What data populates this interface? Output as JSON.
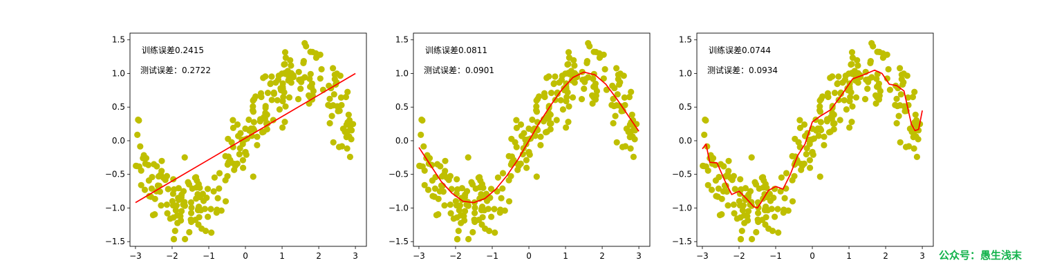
{
  "chart_data": [
    {
      "type": "scatter",
      "xlim": [
        -3.15,
        3.3
      ],
      "ylim": [
        -1.57,
        1.6
      ],
      "xticks": [
        "−3",
        "−2",
        "−1",
        "0",
        "1",
        "2",
        "3"
      ],
      "yticks": [
        "1.5",
        "1.0",
        "0.5",
        "0.0",
        "−0.5",
        "−1.0",
        "−1.5"
      ],
      "annotations": [
        "训练误差0.2415",
        "测试误差：0.2722"
      ],
      "scatter_color": "#bfbf00",
      "fit_color": "#ff0000",
      "fit_curve": {
        "x": [
          -3.0,
          -2.0,
          -1.0,
          0.0,
          1.0,
          2.0,
          3.0
        ],
        "y": [
          -0.92,
          -0.6,
          -0.28,
          0.04,
          0.36,
          0.68,
          1.0
        ]
      }
    },
    {
      "type": "scatter",
      "xlim": [
        -3.15,
        3.3
      ],
      "ylim": [
        -1.57,
        1.6
      ],
      "xticks": [
        "−3",
        "−2",
        "−1",
        "0",
        "1",
        "2",
        "3"
      ],
      "yticks": [
        "1.5",
        "1.0",
        "0.5",
        "0.0",
        "−0.5",
        "−1.0",
        "−1.5"
      ],
      "annotations": [
        "训练误差0.0811",
        "测试误差：0.0901"
      ],
      "scatter_color": "#bfbf00",
      "fit_color": "#ff0000",
      "fit_curve": {
        "x": [
          -3.0,
          -2.7,
          -2.4,
          -2.1,
          -1.8,
          -1.5,
          -1.2,
          -0.9,
          -0.6,
          -0.3,
          0.0,
          0.3,
          0.6,
          0.9,
          1.2,
          1.5,
          1.8,
          2.1,
          2.4,
          2.7,
          3.0
        ],
        "y": [
          -0.1,
          -0.35,
          -0.6,
          -0.78,
          -0.9,
          -0.92,
          -0.86,
          -0.72,
          -0.52,
          -0.28,
          0.0,
          0.28,
          0.53,
          0.76,
          0.94,
          1.02,
          0.98,
          0.84,
          0.62,
          0.38,
          0.14
        ]
      }
    },
    {
      "type": "scatter",
      "xlim": [
        -3.15,
        3.3
      ],
      "ylim": [
        -1.57,
        1.6
      ],
      "xticks": [
        "−3",
        "−2",
        "−1",
        "0",
        "1",
        "2",
        "3"
      ],
      "yticks": [
        "1.5",
        "1.0",
        "0.5",
        "0.0",
        "−0.5",
        "−1.0",
        "−1.5"
      ],
      "annotations": [
        "训练误差0.0744",
        "测试误差：0.0934"
      ],
      "scatter_color": "#bfbf00",
      "fit_color": "#ff0000",
      "fit_curve": {
        "x": [
          -3.0,
          -2.9,
          -2.8,
          -2.6,
          -2.4,
          -2.2,
          -2.0,
          -1.8,
          -1.6,
          -1.5,
          -1.4,
          -1.2,
          -1.0,
          -0.8,
          -0.6,
          -0.4,
          -0.2,
          0.0,
          0.2,
          0.5,
          0.8,
          1.1,
          1.4,
          1.7,
          1.9,
          2.1,
          2.3,
          2.5,
          2.7,
          2.8,
          2.9,
          3.0
        ],
        "y": [
          -0.12,
          -0.05,
          -0.32,
          -0.33,
          -0.58,
          -0.8,
          -0.75,
          -0.86,
          -0.98,
          -1.0,
          -0.92,
          -0.74,
          -0.68,
          -0.72,
          -0.5,
          -0.22,
          -0.05,
          0.28,
          0.36,
          0.46,
          0.68,
          0.92,
          0.98,
          1.05,
          1.0,
          0.84,
          0.82,
          0.74,
          0.25,
          0.15,
          0.17,
          0.45
        ]
      }
    }
  ],
  "watermark": "公众号：愚生浅末"
}
